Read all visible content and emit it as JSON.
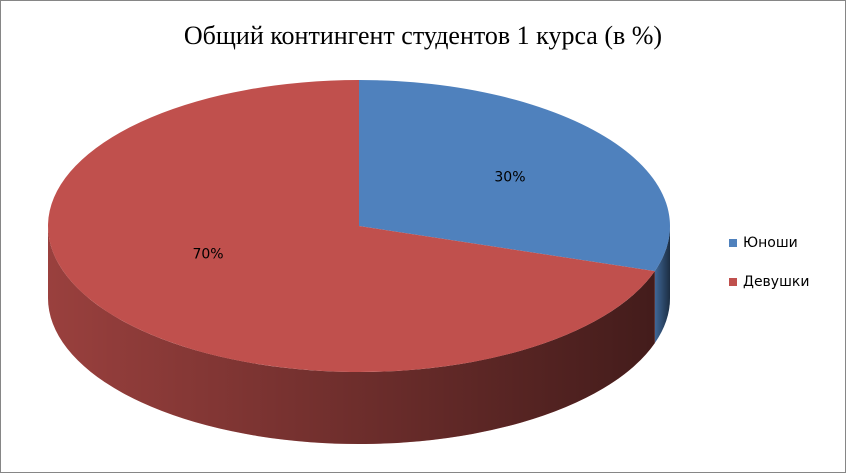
{
  "chart_data": {
    "type": "pie",
    "title": "Общий контингент студентов 1 курса (в %)",
    "categories": [
      "Юноши",
      "Девушки"
    ],
    "values": [
      30,
      70
    ],
    "value_labels": [
      "30%",
      "70%"
    ],
    "colors": [
      "#4f81bd",
      "#c0504d"
    ],
    "legend": "right"
  }
}
